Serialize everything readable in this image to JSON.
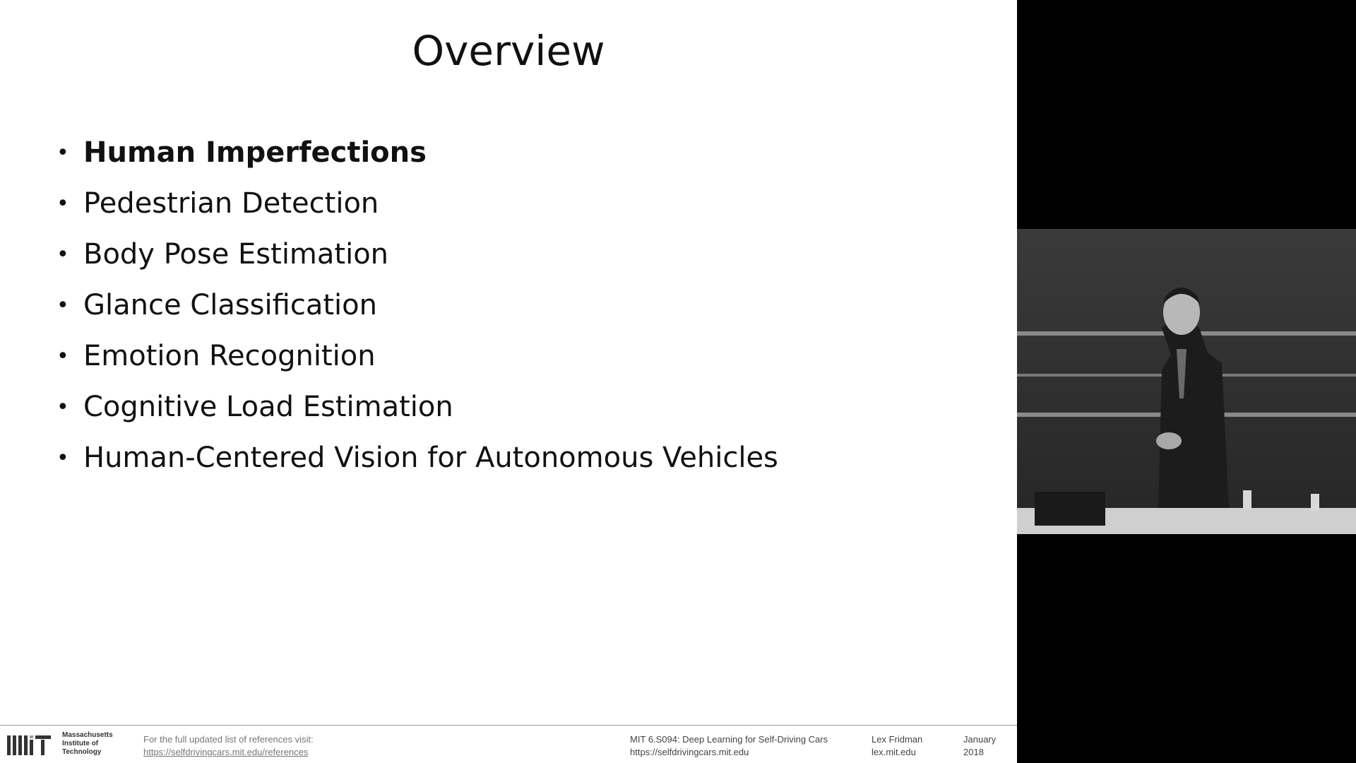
{
  "slide": {
    "title": "Overview",
    "bullets": [
      {
        "label": "Human Imperfections",
        "bold": true
      },
      {
        "label": "Pedestrian Detection",
        "bold": false
      },
      {
        "label": "Body Pose Estimation",
        "bold": false
      },
      {
        "label": "Glance Classification",
        "bold": false
      },
      {
        "label": "Emotion Recognition",
        "bold": false
      },
      {
        "label": "Cognitive Load Estimation",
        "bold": false
      },
      {
        "label": "Human-Centered Vision for Autonomous Vehicles",
        "bold": false
      }
    ],
    "bullet_glyph": "•"
  },
  "footer": {
    "institution": [
      "Massachusetts",
      "Institute of",
      "Technology"
    ],
    "refs_text": "For the full updated list of references visit:",
    "refs_url": "https://selfdrivingcars.mit.edu/references",
    "course_name": "MIT 6.S094: Deep Learning for Self-Driving Cars",
    "course_url": "https://selfdrivingcars.mit.edu",
    "author_name": "Lex Fridman",
    "author_site": "lex.mit.edu",
    "date_month": "January",
    "date_year": "2018"
  },
  "icons": {
    "logo": "mit-logo-icon"
  },
  "colors": {
    "slide_background": "#ffffff",
    "text": "#111111",
    "panel_background": "#000000"
  }
}
